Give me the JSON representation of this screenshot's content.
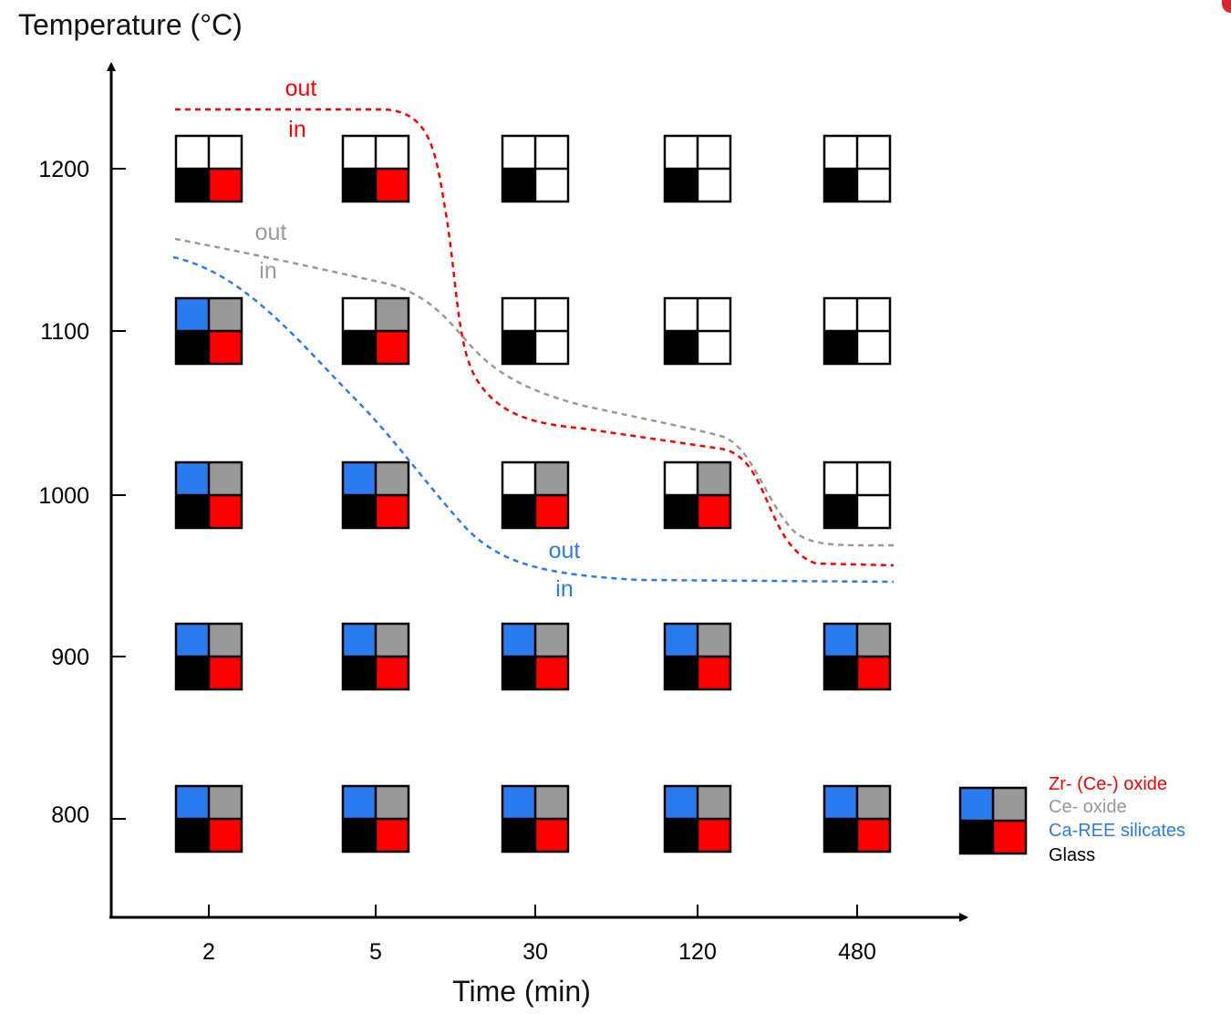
{
  "y_axis": {
    "label": "Temperature (°C)",
    "ticks": [
      {
        "label": "1200",
        "value": 1200
      },
      {
        "label": "1100",
        "value": 1100
      },
      {
        "label": "1000",
        "value": 1000
      },
      {
        "label": "900",
        "value": 900
      },
      {
        "label": "800",
        "value": 800
      }
    ]
  },
  "x_axis": {
    "label": "Time (min)",
    "ticks": [
      "2",
      "5",
      "30",
      "120",
      "480"
    ]
  },
  "colors": {
    "zr_oxide": "#ff0000",
    "ce_oxide": "#999999",
    "ca_ree_silicates": "#2b7bf0",
    "glass": "#000000",
    "absent": "#ffffff"
  },
  "legend": {
    "items": [
      {
        "label": "Zr- (Ce-) oxide",
        "color": "#ff0000"
      },
      {
        "label": "Ce- oxide",
        "color": "#999999"
      },
      {
        "label": "Ca-REE silicates",
        "color": "#2b7bf0"
      },
      {
        "label": "Glass",
        "color": "#000000"
      }
    ]
  },
  "phase_grid": {
    "cell_order": [
      "top-left: Ca-REE silicates",
      "top-right: Ce- oxide",
      "bottom-left: Glass",
      "bottom-right: Zr- (Ce-) oxide"
    ],
    "rows": [
      {
        "temperature": "1200",
        "cells": [
          [
            0,
            0,
            1,
            1
          ],
          [
            0,
            0,
            1,
            1
          ],
          [
            0,
            0,
            1,
            0
          ],
          [
            0,
            0,
            1,
            0
          ],
          [
            0,
            0,
            1,
            0
          ]
        ]
      },
      {
        "temperature": "1100",
        "cells": [
          [
            1,
            1,
            1,
            1
          ],
          [
            0,
            1,
            1,
            1
          ],
          [
            0,
            0,
            1,
            0
          ],
          [
            0,
            0,
            1,
            0
          ],
          [
            0,
            0,
            1,
            0
          ]
        ]
      },
      {
        "temperature": "1000",
        "cells": [
          [
            1,
            1,
            1,
            1
          ],
          [
            1,
            1,
            1,
            1
          ],
          [
            0,
            1,
            1,
            1
          ],
          [
            0,
            1,
            1,
            1
          ],
          [
            0,
            0,
            1,
            0
          ]
        ]
      },
      {
        "temperature": "900",
        "cells": [
          [
            1,
            1,
            1,
            1
          ],
          [
            1,
            1,
            1,
            1
          ],
          [
            1,
            1,
            1,
            1
          ],
          [
            1,
            1,
            1,
            1
          ],
          [
            1,
            1,
            1,
            1
          ]
        ]
      },
      {
        "temperature": "800",
        "cells": [
          [
            1,
            1,
            1,
            1
          ],
          [
            1,
            1,
            1,
            1
          ],
          [
            1,
            1,
            1,
            1
          ],
          [
            1,
            1,
            1,
            1
          ],
          [
            1,
            1,
            1,
            1
          ]
        ]
      }
    ]
  },
  "boundary_curves": [
    {
      "phase": "Zr- (Ce-) oxide",
      "color": "#ff0000",
      "label_out": "out",
      "label_in": "in"
    },
    {
      "phase": "Ce- oxide",
      "color": "#999999",
      "label_out": "out",
      "label_in": "in"
    },
    {
      "phase": "Ca-REE silicates",
      "color": "#2b7bf0",
      "label_out": "out",
      "label_in": "in"
    }
  ]
}
